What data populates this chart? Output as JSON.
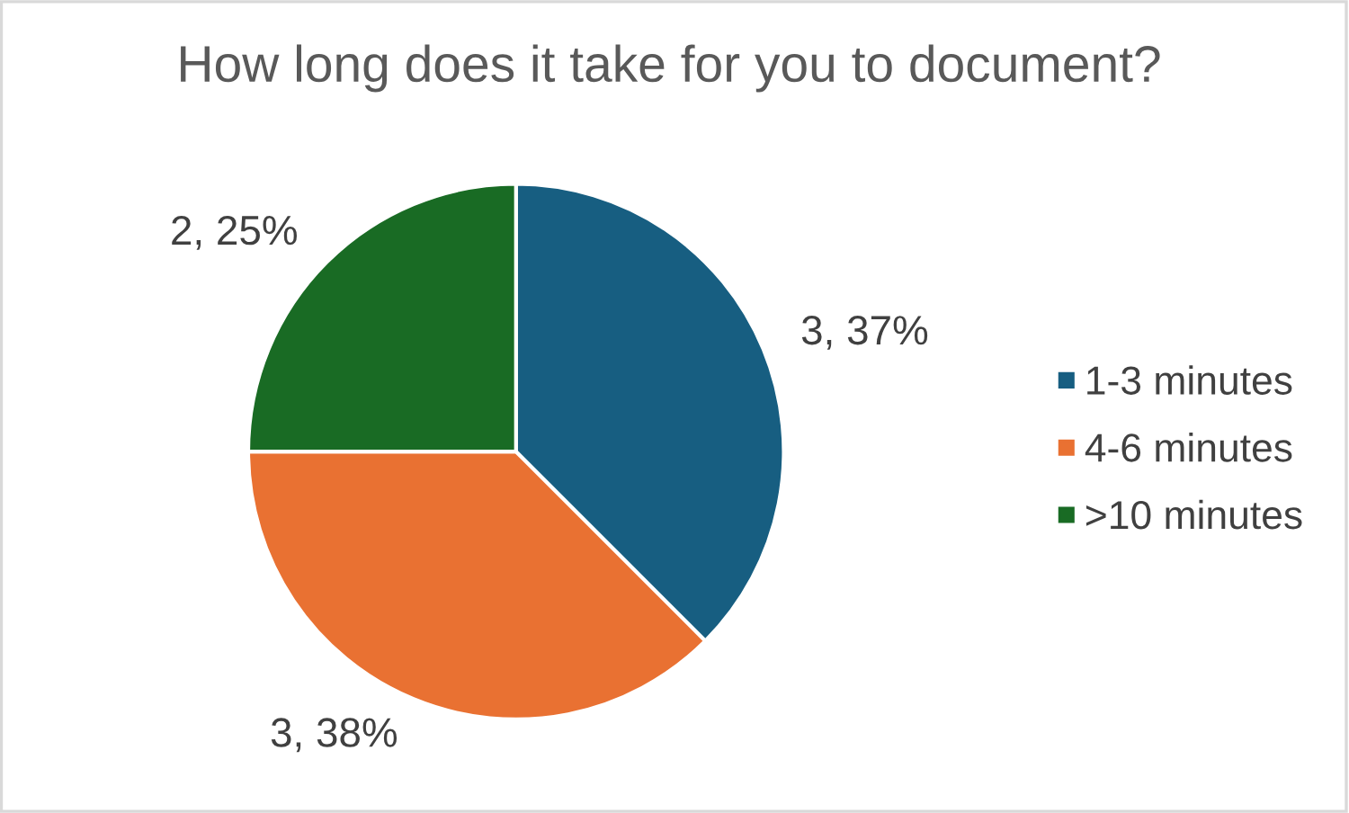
{
  "chart_data": {
    "type": "pie",
    "title": "How long does it take for you to document?",
    "categories": [
      "1-3 minutes",
      "4-6 minutes",
      ">10 minutes"
    ],
    "values": [
      3,
      3,
      2
    ],
    "value_labels": [
      "3, 37%",
      "3, 38%",
      "2, 25%"
    ],
    "colors": [
      "#175e81",
      "#e97132",
      "#196b24"
    ],
    "legend": "right"
  }
}
